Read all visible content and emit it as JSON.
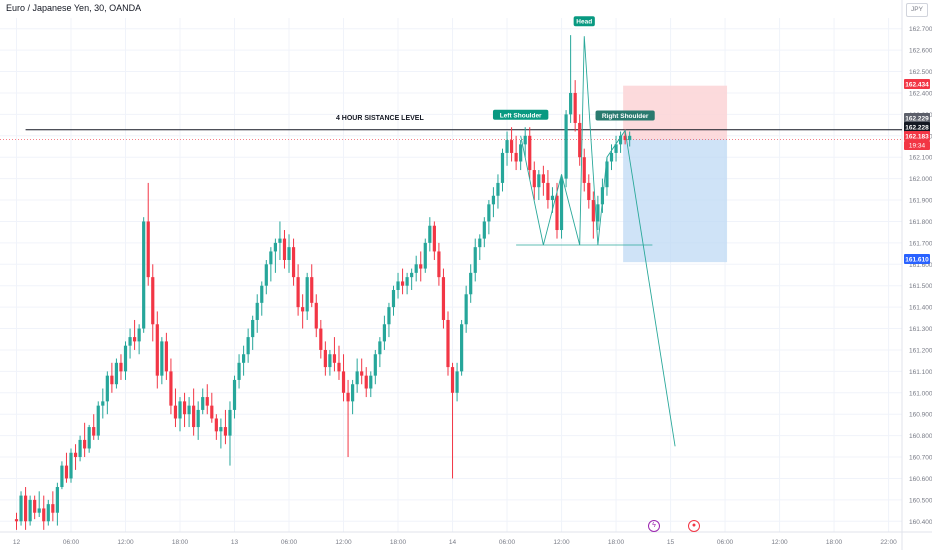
{
  "symbol_title": "Euro / Japanese Yen, 30, OANDA",
  "currency_label": "JPY",
  "colors": {
    "bull": "#26a69a",
    "bear": "#f23645",
    "grid": "#f0f3fa",
    "axis_text": "#787b86",
    "target_fill": "#bbd7f3",
    "stop_fill": "#fcd3d6",
    "pattern_line": "#2aa89a"
  },
  "event_icons": [
    "lightning-icon",
    "record-icon"
  ],
  "chart_data": {
    "type": "candlestick",
    "title": "Euro / Japanese Yen, 30, OANDA",
    "ylim": [
      160.35,
      162.75
    ],
    "y_ticks": [
      160.4,
      160.5,
      160.6,
      160.7,
      160.8,
      160.9,
      161.0,
      161.1,
      161.2,
      161.3,
      161.4,
      161.5,
      161.6,
      161.7,
      161.8,
      161.9,
      162.0,
      162.1,
      162.2,
      162.3,
      162.4,
      162.5,
      162.6,
      162.7
    ],
    "y_tick_labels": [
      "160.400",
      "160.500",
      "160.600",
      "160.700",
      "160.800",
      "160.900",
      "161.000",
      "161.100",
      "161.200",
      "161.300",
      "161.400",
      "161.500",
      "161.600",
      "161.700",
      "161.800",
      "161.900",
      "162.000",
      "162.100",
      "162.200",
      "162.300",
      "162.400",
      "162.500",
      "162.600",
      "162.700"
    ],
    "x_ticks": [
      {
        "bar": 0,
        "label": "12"
      },
      {
        "bar": 12,
        "label": "06:00"
      },
      {
        "bar": 24,
        "label": "12:00"
      },
      {
        "bar": 36,
        "label": "18:00"
      },
      {
        "bar": 48,
        "label": "13"
      },
      {
        "bar": 60,
        "label": "06:00"
      },
      {
        "bar": 72,
        "label": "12:00"
      },
      {
        "bar": 84,
        "label": "18:00"
      },
      {
        "bar": 96,
        "label": "14"
      },
      {
        "bar": 108,
        "label": "06:00"
      },
      {
        "bar": 120,
        "label": "12:00"
      },
      {
        "bar": 132,
        "label": "18:00"
      },
      {
        "bar": 144,
        "label": "15"
      },
      {
        "bar": 156,
        "label": "06:00"
      },
      {
        "bar": 168,
        "label": "12:00"
      },
      {
        "bar": 180,
        "label": "18:00"
      },
      {
        "bar": 192,
        "label": "22:00"
      }
    ],
    "price_labels": [
      {
        "value": 162.434,
        "text": "162.434",
        "color": "#f23645"
      },
      {
        "value": 162.229,
        "text": "162.229",
        "color": "#5d606b"
      },
      {
        "value": 162.228,
        "text": "162.228",
        "color": "#131722"
      },
      {
        "value": 162.183,
        "text": "162.183",
        "color": "#f23645"
      },
      {
        "value": 161.61,
        "text": "161.610",
        "color": "#2962ff"
      }
    ],
    "countdown": "19:34",
    "resistance": {
      "value": 162.228,
      "label": "4 HOUR SISTANCE LEVEL"
    },
    "pattern": {
      "labels": [
        "Left Shoulder",
        "Head",
        "Right Shoulder"
      ],
      "label_points": [
        [
          111,
          162.228
        ],
        [
          125,
          162.665
        ],
        [
          134,
          162.225
        ]
      ],
      "zigzag": [
        [
          111,
          162.2
        ],
        [
          116,
          161.69
        ],
        [
          120,
          162.02
        ],
        [
          124,
          161.69
        ],
        [
          125,
          162.665
        ],
        [
          128,
          161.69
        ],
        [
          130,
          162.1
        ],
        [
          134,
          162.225
        ],
        [
          145,
          160.75
        ]
      ],
      "neckline": {
        "y": 161.69,
        "x0": 110,
        "x1": 140
      }
    },
    "position": {
      "entry": 162.183,
      "stop": 162.434,
      "target": 161.61,
      "bar_start": 134,
      "bar_end": 156
    },
    "candles": [
      [
        160.41,
        160.44,
        160.36,
        160.4
      ],
      [
        160.4,
        160.54,
        160.38,
        160.52
      ],
      [
        160.52,
        160.56,
        160.36,
        160.4
      ],
      [
        160.4,
        160.52,
        160.38,
        160.5
      ],
      [
        160.5,
        160.52,
        160.41,
        160.44
      ],
      [
        160.44,
        160.54,
        160.42,
        160.46
      ],
      [
        160.46,
        160.52,
        160.36,
        160.4
      ],
      [
        160.4,
        160.5,
        160.38,
        160.48
      ],
      [
        160.48,
        160.54,
        160.4,
        160.44
      ],
      [
        160.44,
        160.58,
        160.38,
        160.56
      ],
      [
        160.56,
        160.68,
        160.55,
        160.66
      ],
      [
        160.66,
        160.72,
        160.58,
        160.6
      ],
      [
        160.6,
        160.74,
        160.58,
        160.72
      ],
      [
        160.72,
        160.76,
        160.64,
        160.7
      ],
      [
        160.7,
        160.8,
        160.68,
        160.78
      ],
      [
        160.78,
        160.86,
        160.7,
        160.74
      ],
      [
        160.74,
        160.85,
        160.72,
        160.84
      ],
      [
        160.84,
        160.9,
        160.78,
        160.8
      ],
      [
        160.8,
        160.96,
        160.78,
        160.94
      ],
      [
        160.94,
        161.02,
        160.88,
        160.96
      ],
      [
        160.96,
        161.1,
        160.9,
        161.08
      ],
      [
        161.08,
        161.14,
        161.0,
        161.04
      ],
      [
        161.04,
        161.16,
        161.02,
        161.14
      ],
      [
        161.14,
        161.18,
        161.06,
        161.1
      ],
      [
        161.1,
        161.24,
        161.06,
        161.22
      ],
      [
        161.22,
        161.3,
        161.16,
        161.26
      ],
      [
        161.26,
        161.34,
        161.2,
        161.24
      ],
      [
        161.24,
        161.32,
        161.18,
        161.3
      ],
      [
        161.3,
        161.82,
        161.28,
        161.8
      ],
      [
        161.8,
        161.98,
        161.5,
        161.54
      ],
      [
        161.54,
        161.6,
        161.24,
        161.32
      ],
      [
        161.32,
        161.38,
        161.02,
        161.08
      ],
      [
        161.08,
        161.26,
        161.04,
        161.24
      ],
      [
        161.24,
        161.28,
        161.06,
        161.1
      ],
      [
        161.1,
        161.16,
        160.9,
        160.94
      ],
      [
        160.94,
        161.02,
        160.84,
        160.88
      ],
      [
        160.88,
        160.98,
        160.82,
        160.96
      ],
      [
        160.96,
        161.0,
        160.84,
        160.9
      ],
      [
        160.9,
        160.98,
        160.84,
        160.94
      ],
      [
        160.94,
        161.02,
        160.8,
        160.84
      ],
      [
        160.84,
        160.96,
        160.78,
        160.92
      ],
      [
        160.92,
        161.02,
        160.9,
        160.98
      ],
      [
        160.98,
        161.04,
        160.9,
        160.94
      ],
      [
        160.94,
        161.0,
        160.86,
        160.88
      ],
      [
        160.88,
        160.9,
        160.78,
        160.82
      ],
      [
        160.82,
        160.88,
        160.74,
        160.84
      ],
      [
        160.84,
        160.92,
        160.76,
        160.8
      ],
      [
        160.8,
        160.96,
        160.66,
        160.92
      ],
      [
        160.92,
        161.08,
        160.88,
        161.06
      ],
      [
        161.06,
        161.18,
        161.02,
        161.14
      ],
      [
        161.14,
        161.22,
        161.08,
        161.18
      ],
      [
        161.18,
        161.3,
        161.14,
        161.26
      ],
      [
        161.26,
        161.36,
        161.2,
        161.34
      ],
      [
        161.34,
        161.46,
        161.28,
        161.42
      ],
      [
        161.42,
        161.52,
        161.36,
        161.5
      ],
      [
        161.5,
        161.62,
        161.46,
        161.6
      ],
      [
        161.6,
        161.68,
        161.52,
        161.66
      ],
      [
        161.66,
        161.72,
        161.56,
        161.7
      ],
      [
        161.7,
        161.8,
        161.62,
        161.72
      ],
      [
        161.72,
        161.76,
        161.58,
        161.62
      ],
      [
        161.62,
        161.74,
        161.56,
        161.68
      ],
      [
        161.68,
        161.72,
        161.5,
        161.54
      ],
      [
        161.54,
        161.6,
        161.36,
        161.4
      ],
      [
        161.4,
        161.46,
        161.3,
        161.38
      ],
      [
        161.38,
        161.56,
        161.34,
        161.54
      ],
      [
        161.54,
        161.6,
        161.4,
        161.42
      ],
      [
        161.42,
        161.46,
        161.26,
        161.3
      ],
      [
        161.3,
        161.34,
        161.16,
        161.2
      ],
      [
        161.2,
        161.24,
        161.08,
        161.12
      ],
      [
        161.12,
        161.2,
        161.08,
        161.18
      ],
      [
        161.18,
        161.26,
        161.1,
        161.14
      ],
      [
        161.14,
        161.22,
        161.06,
        161.1
      ],
      [
        161.1,
        161.18,
        160.96,
        161.0
      ],
      [
        161.0,
        161.06,
        160.7,
        160.96
      ],
      [
        160.96,
        161.06,
        160.9,
        161.04
      ],
      [
        161.04,
        161.16,
        161.0,
        161.1
      ],
      [
        161.1,
        161.16,
        161.04,
        161.08
      ],
      [
        161.08,
        161.12,
        160.98,
        161.02
      ],
      [
        161.02,
        161.1,
        160.98,
        161.08
      ],
      [
        161.08,
        161.2,
        161.04,
        161.18
      ],
      [
        161.18,
        161.26,
        161.12,
        161.24
      ],
      [
        161.24,
        161.36,
        161.2,
        161.32
      ],
      [
        161.32,
        161.42,
        161.26,
        161.4
      ],
      [
        161.4,
        161.5,
        161.36,
        161.48
      ],
      [
        161.48,
        161.56,
        161.44,
        161.52
      ],
      [
        161.52,
        161.58,
        161.46,
        161.5
      ],
      [
        161.5,
        161.56,
        161.46,
        161.54
      ],
      [
        161.54,
        161.58,
        161.48,
        161.56
      ],
      [
        161.56,
        161.64,
        161.52,
        161.6
      ],
      [
        161.6,
        161.66,
        161.52,
        161.58
      ],
      [
        161.58,
        161.72,
        161.56,
        161.7
      ],
      [
        161.7,
        161.82,
        161.66,
        161.78
      ],
      [
        161.78,
        161.8,
        161.62,
        161.66
      ],
      [
        161.66,
        161.7,
        161.5,
        161.54
      ],
      [
        161.54,
        161.58,
        161.3,
        161.34
      ],
      [
        161.34,
        161.38,
        161.08,
        161.12
      ],
      [
        161.12,
        161.14,
        160.6,
        161.0
      ],
      [
        161.0,
        161.14,
        160.96,
        161.1
      ],
      [
        161.1,
        161.34,
        161.08,
        161.32
      ],
      [
        161.32,
        161.5,
        161.28,
        161.46
      ],
      [
        161.46,
        161.6,
        161.42,
        161.56
      ],
      [
        161.56,
        161.72,
        161.52,
        161.68
      ],
      [
        161.68,
        161.74,
        161.62,
        161.72
      ],
      [
        161.72,
        161.82,
        161.68,
        161.8
      ],
      [
        161.8,
        161.9,
        161.74,
        161.88
      ],
      [
        161.88,
        161.96,
        161.82,
        161.92
      ],
      [
        161.92,
        162.02,
        161.86,
        161.98
      ],
      [
        161.98,
        162.14,
        161.94,
        162.12
      ],
      [
        162.12,
        162.22,
        162.06,
        162.18
      ],
      [
        162.18,
        162.24,
        162.08,
        162.12
      ],
      [
        162.12,
        162.2,
        162.04,
        162.08
      ],
      [
        162.08,
        162.18,
        162.04,
        162.16
      ],
      [
        162.16,
        162.24,
        162.1,
        162.2
      ],
      [
        162.2,
        162.24,
        162.0,
        162.04
      ],
      [
        162.04,
        162.08,
        161.9,
        161.96
      ],
      [
        161.96,
        162.04,
        161.9,
        162.02
      ],
      [
        162.02,
        162.06,
        161.92,
        161.98
      ],
      [
        161.98,
        162.04,
        161.86,
        161.9
      ],
      [
        161.9,
        161.96,
        161.84,
        161.92
      ],
      [
        161.92,
        161.98,
        161.72,
        161.76
      ],
      [
        161.76,
        162.02,
        161.72,
        162.0
      ],
      [
        162.0,
        162.32,
        161.96,
        162.3
      ],
      [
        162.3,
        162.67,
        162.26,
        162.4
      ],
      [
        162.4,
        162.46,
        162.22,
        162.26
      ],
      [
        162.26,
        162.3,
        162.06,
        162.1
      ],
      [
        162.1,
        162.14,
        161.94,
        161.98
      ],
      [
        161.98,
        162.02,
        161.86,
        161.9
      ],
      [
        161.9,
        161.94,
        161.72,
        161.8
      ],
      [
        161.8,
        161.92,
        161.76,
        161.88
      ],
      [
        161.88,
        162.0,
        161.84,
        161.96
      ],
      [
        161.96,
        162.1,
        161.92,
        162.08
      ],
      [
        162.08,
        162.16,
        162.04,
        162.12
      ],
      [
        162.12,
        162.2,
        162.08,
        162.16
      ],
      [
        162.16,
        162.22,
        162.12,
        162.2
      ],
      [
        162.2,
        162.23,
        162.16,
        162.18
      ],
      [
        162.18,
        162.22,
        162.15,
        162.2
      ]
    ]
  }
}
